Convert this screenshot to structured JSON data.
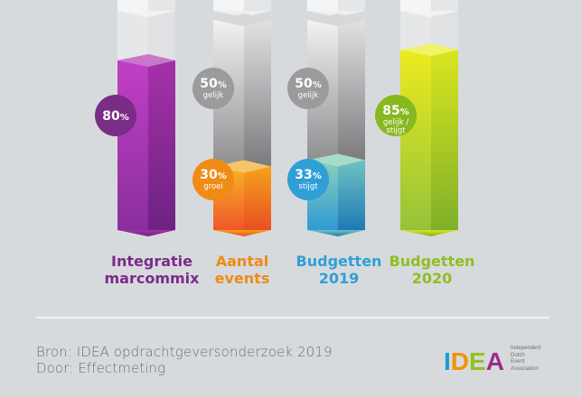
{
  "chart_data": {
    "type": "bar",
    "style": "3d-stacked-columns",
    "categories": [
      "Integratie marcommix",
      "Aantal events",
      "Budgetten 2019",
      "Budgetten 2020"
    ],
    "series": [
      {
        "name": "primary",
        "values": [
          80,
          30,
          33,
          85
        ],
        "labels": [
          "80%",
          "30%",
          "33%",
          "85%"
        ],
        "sublabels": [
          "",
          "groei",
          "stijgt",
          "gelijk / stijgt"
        ]
      },
      {
        "name": "secondary",
        "values": [
          null,
          50,
          50,
          null
        ],
        "labels": [
          "",
          "50%",
          "50%",
          ""
        ],
        "sublabels": [
          "",
          "gelijk",
          "gelijk",
          ""
        ]
      }
    ],
    "category_lines": [
      [
        "Integratie",
        "marcommix"
      ],
      [
        "Aantal",
        "events"
      ],
      [
        "Budgetten",
        "2019"
      ],
      [
        "Budgetten",
        "2020"
      ]
    ],
    "colors": {
      "purple": "#9b2d9b",
      "orange": "#f28a1e",
      "blue": "#2f9fd6",
      "green": "#9bc42a",
      "grey": "#a7a7a9"
    },
    "label_colors": [
      "#7b2a8b",
      "#ef8a14",
      "#2f9fd6",
      "#8fbf1f"
    ]
  },
  "source": {
    "line1": "Bron:  IDEA opdrachtgeversonderzoek 2019",
    "line2": "Door:  Effectmeting"
  },
  "logo": {
    "letters": [
      "I",
      "D",
      "E",
      "A"
    ],
    "tagline": [
      "Independent",
      "Dutch",
      "Event",
      "Association"
    ]
  }
}
